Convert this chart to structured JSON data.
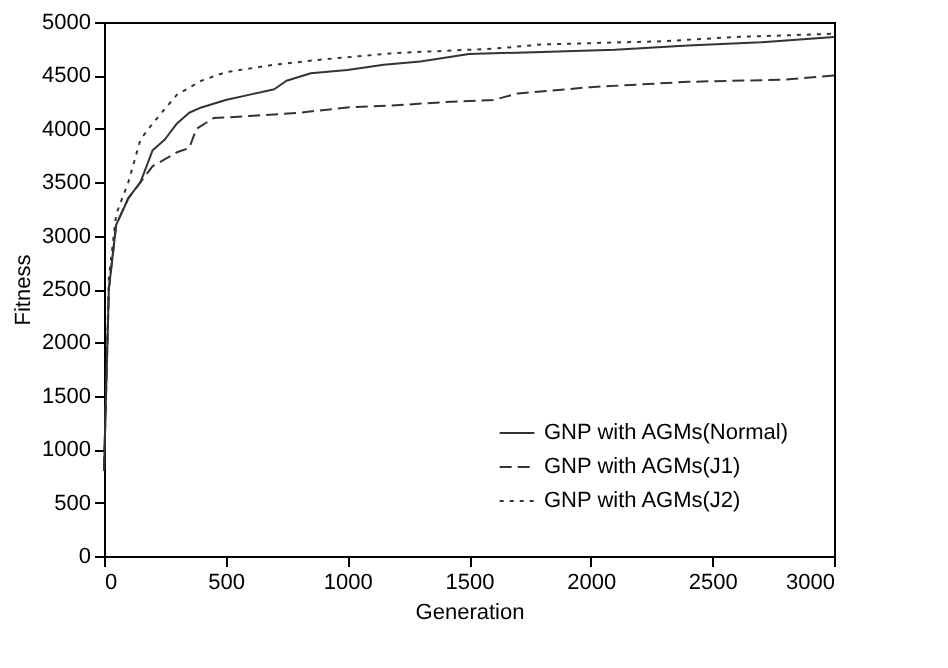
{
  "chart_data": {
    "type": "line",
    "xlabel": "Generation",
    "ylabel": "Fitness",
    "xlim": [
      0,
      3000
    ],
    "ylim": [
      0,
      5000
    ],
    "xticks": [
      0,
      500,
      1000,
      1500,
      2000,
      2500,
      3000
    ],
    "yticks": [
      0,
      500,
      1000,
      1500,
      2000,
      2500,
      3000,
      3500,
      4000,
      4500,
      5000
    ],
    "grid": false,
    "legend": "bottom right",
    "marker": "none",
    "series": [
      {
        "name": "GNP with AGMs(Normal)",
        "color": "#333333",
        "line_style": "solid",
        "x": [
          0,
          20,
          50,
          100,
          150,
          200,
          250,
          300,
          350,
          400,
          500,
          600,
          700,
          750,
          850,
          1000,
          1150,
          1300,
          1500,
          1800,
          2100,
          2400,
          2700,
          3000
        ],
        "values": [
          800,
          2500,
          3100,
          3350,
          3500,
          3800,
          3900,
          4050,
          4150,
          4200,
          4270,
          4320,
          4370,
          4450,
          4520,
          4550,
          4600,
          4630,
          4700,
          4720,
          4740,
          4780,
          4810,
          4860
        ]
      },
      {
        "name": "GNP with AGMs(J1)",
        "color": "#333333",
        "line_style": "dashed",
        "x": [
          0,
          20,
          50,
          100,
          150,
          200,
          300,
          350,
          380,
          450,
          600,
          800,
          1000,
          1200,
          1400,
          1600,
          1700,
          2000,
          2400,
          2800,
          3000
        ],
        "values": [
          800,
          2500,
          3100,
          3350,
          3500,
          3650,
          3780,
          3820,
          4000,
          4100,
          4120,
          4150,
          4200,
          4220,
          4250,
          4270,
          4330,
          4390,
          4440,
          4460,
          4500
        ]
      },
      {
        "name": "GNP with AGMs(J2)",
        "color": "#333333",
        "line_style": "dotted",
        "x": [
          0,
          20,
          50,
          100,
          150,
          200,
          300,
          400,
          500,
          700,
          900,
          1200,
          1600,
          1800,
          2300,
          2600,
          3000
        ],
        "values": [
          800,
          2600,
          3200,
          3500,
          3900,
          4050,
          4320,
          4450,
          4530,
          4600,
          4650,
          4710,
          4750,
          4790,
          4820,
          4860,
          4890
        ]
      }
    ]
  }
}
